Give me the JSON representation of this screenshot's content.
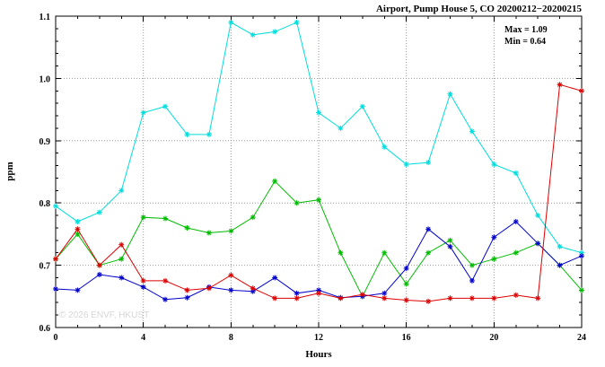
{
  "watermark": "© 2026 ENVF, HKUST",
  "annotation": {
    "max": "Max = 1.09",
    "min": "Min = 0.64"
  },
  "chart_data": {
    "type": "line",
    "title": "Airport, Pump House 5, CO 20200212−20200215",
    "xlabel": "Hours",
    "ylabel": "ppm",
    "xlim": [
      0,
      24
    ],
    "ylim": [
      0.6,
      1.1
    ],
    "xticks": [
      0,
      4,
      8,
      12,
      16,
      20,
      24
    ],
    "yticks": [
      0.6,
      0.7,
      0.8,
      0.9,
      1.0,
      1.1
    ],
    "grid": true,
    "legend": "none",
    "marker": "asterisk",
    "x": [
      0,
      1,
      2,
      3,
      4,
      5,
      6,
      7,
      8,
      9,
      10,
      11,
      12,
      13,
      14,
      15,
      16,
      17,
      18,
      19,
      20,
      21,
      22,
      23,
      24
    ],
    "series": [
      {
        "name": "series-cyan",
        "color": "#00dddd",
        "values": [
          0.795,
          0.77,
          0.785,
          0.82,
          0.945,
          0.955,
          0.91,
          0.91,
          1.09,
          1.07,
          1.075,
          1.09,
          0.945,
          0.92,
          0.955,
          0.89,
          0.862,
          0.865,
          0.975,
          0.915,
          0.862,
          0.848,
          0.78,
          0.73,
          0.72
        ]
      },
      {
        "name": "series-green",
        "color": "#00bb00",
        "values": [
          0.71,
          0.75,
          0.7,
          0.71,
          0.777,
          0.775,
          0.76,
          0.752,
          0.755,
          0.777,
          0.835,
          0.8,
          0.805,
          0.72,
          0.65,
          0.72,
          0.67,
          0.72,
          0.74,
          0.7,
          0.71,
          0.72,
          0.735,
          0.7,
          0.66
        ]
      },
      {
        "name": "series-blue",
        "color": "#0000cc",
        "values": [
          0.662,
          0.66,
          0.685,
          0.68,
          0.665,
          0.645,
          0.648,
          0.665,
          0.66,
          0.658,
          0.68,
          0.655,
          0.66,
          0.648,
          0.65,
          0.655,
          0.695,
          0.758,
          0.73,
          0.675,
          0.745,
          0.77,
          0.735,
          0.7,
          0.715
        ]
      },
      {
        "name": "series-red",
        "color": "#dd0000",
        "values": [
          0.71,
          0.758,
          0.7,
          0.733,
          0.675,
          0.675,
          0.66,
          0.663,
          0.684,
          0.663,
          0.647,
          0.647,
          0.655,
          0.647,
          0.653,
          0.647,
          0.644,
          0.642,
          0.647,
          0.647,
          0.647,
          0.652,
          0.647,
          0.99,
          0.98
        ]
      }
    ],
    "annotations": [
      "Max = 1.09",
      "Min = 0.64"
    ]
  }
}
